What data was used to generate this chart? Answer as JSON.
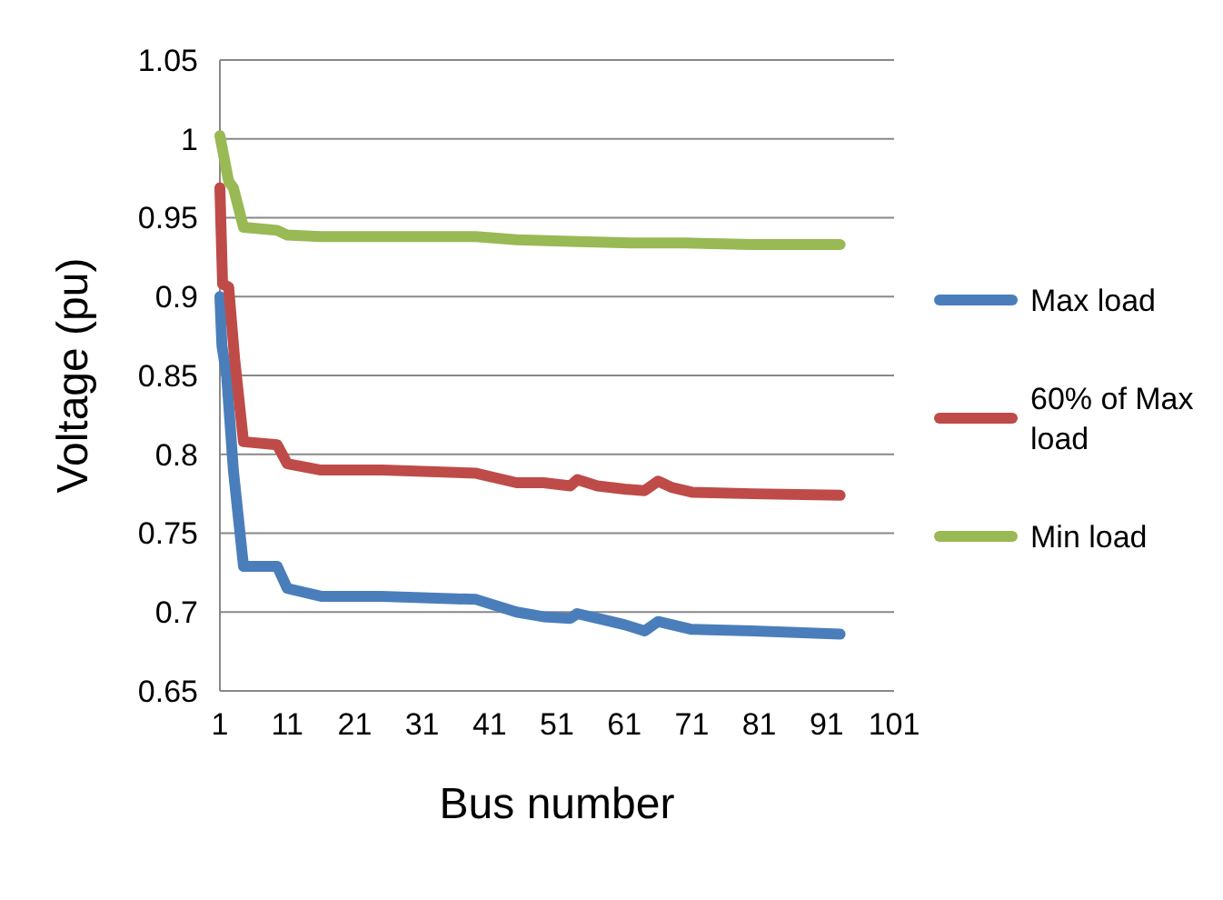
{
  "chart_data": {
    "type": "line",
    "xlabel": "Bus number",
    "ylabel": "Voltage (pu)",
    "xlim": [
      1,
      101
    ],
    "xticks": [
      1,
      11,
      21,
      31,
      41,
      51,
      61,
      71,
      81,
      91,
      101
    ],
    "ylim": [
      0.65,
      1.05
    ],
    "yticks": [
      0.65,
      0.7,
      0.75,
      0.8,
      0.85,
      0.9,
      0.95,
      1,
      1.05
    ],
    "grid": "y",
    "legend": "right",
    "marker": "none",
    "line_style": "solid",
    "series": [
      {
        "name": "Max load",
        "color": "#4a7ebb",
        "x": [
          1,
          1.3,
          2,
          3,
          4.5,
          9.5,
          11,
          16,
          25,
          39,
          45,
          49,
          53,
          54,
          57,
          61,
          64,
          66,
          68,
          71,
          80,
          93
        ],
        "values": [
          0.9,
          0.869,
          0.85,
          0.79,
          0.729,
          0.729,
          0.715,
          0.71,
          0.71,
          0.708,
          0.7,
          0.697,
          0.696,
          0.699,
          0.696,
          0.692,
          0.688,
          0.694,
          0.692,
          0.689,
          0.688,
          0.686
        ]
      },
      {
        "name": "60% of Max load",
        "color": "#be4b48",
        "x": [
          1,
          1.4,
          2.3,
          3.2,
          4.5,
          9.5,
          11,
          16,
          25,
          39,
          45,
          49,
          53,
          54,
          57,
          61,
          64,
          66,
          68,
          71,
          80,
          93
        ],
        "values": [
          0.969,
          0.908,
          0.906,
          0.86,
          0.808,
          0.806,
          0.794,
          0.79,
          0.79,
          0.788,
          0.782,
          0.782,
          0.78,
          0.784,
          0.78,
          0.778,
          0.777,
          0.783,
          0.779,
          0.776,
          0.775,
          0.774
        ]
      },
      {
        "name": "Min load",
        "color": "#98b954",
        "x": [
          1,
          2.3,
          3,
          4.5,
          9.5,
          11,
          16,
          25,
          39,
          45,
          53,
          62,
          70,
          80,
          93
        ],
        "values": [
          1.002,
          0.973,
          0.969,
          0.944,
          0.942,
          0.939,
          0.938,
          0.938,
          0.938,
          0.936,
          0.935,
          0.934,
          0.934,
          0.933,
          0.933
        ]
      }
    ]
  }
}
